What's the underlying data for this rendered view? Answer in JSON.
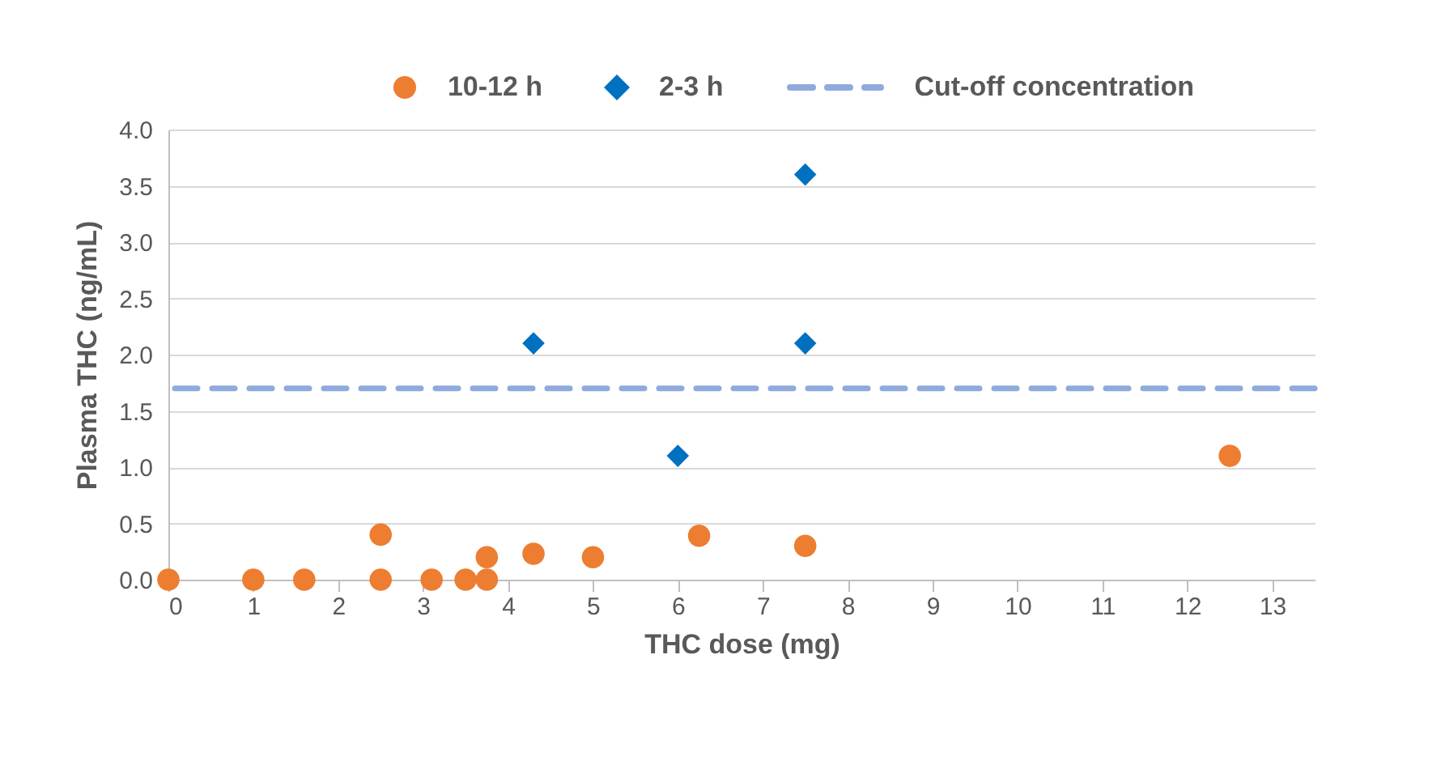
{
  "chart_data": {
    "type": "scatter",
    "xlabel": "THC dose (mg)",
    "ylabel": "Plasma THC (ng/mL)",
    "xlim": [
      0,
      13.5
    ],
    "xticks": [
      0,
      1,
      2,
      3,
      4,
      5,
      6,
      7,
      8,
      9,
      10,
      11,
      12,
      13
    ],
    "ylim": [
      0,
      4.0
    ],
    "yticks": [
      {
        "value": 0,
        "label": "0.0"
      },
      {
        "value": 0.5,
        "label": "0.5"
      },
      {
        "value": 1,
        "label": "1.0"
      },
      {
        "value": 1.5,
        "label": "1.5"
      },
      {
        "value": 2,
        "label": "2.0"
      },
      {
        "value": 2.5,
        "label": "2.5"
      },
      {
        "value": 3,
        "label": "3.0"
      },
      {
        "value": 3.5,
        "label": "3.5"
      },
      {
        "value": 4,
        "label": "4.0"
      }
    ],
    "grid": "y",
    "legend": "top",
    "series": [
      {
        "name": "10-12 h",
        "color": "#ed7d31",
        "marker": "circle",
        "x": [
          0,
          1,
          1.6,
          2.5,
          2.5,
          3.1,
          3.5,
          3.75,
          3.75,
          4.3,
          5,
          6.25,
          7.5,
          12.5
        ],
        "values": [
          0,
          0,
          0,
          0,
          0.4,
          0,
          0,
          0,
          0.2,
          0.23,
          0.2,
          0.39,
          0.3,
          1.1
        ]
      },
      {
        "name": "2-3 h",
        "color": "#0070c0",
        "marker": "diamond",
        "x": [
          4.3,
          6,
          7.5,
          7.5
        ],
        "values": [
          2.1,
          1.1,
          3.6,
          2.1
        ]
      }
    ],
    "ref_lines": [
      {
        "axis": "y",
        "value": 1.7,
        "label": "Cut-off concentration",
        "color": "#8faadc",
        "line_style": "dashed"
      }
    ]
  }
}
